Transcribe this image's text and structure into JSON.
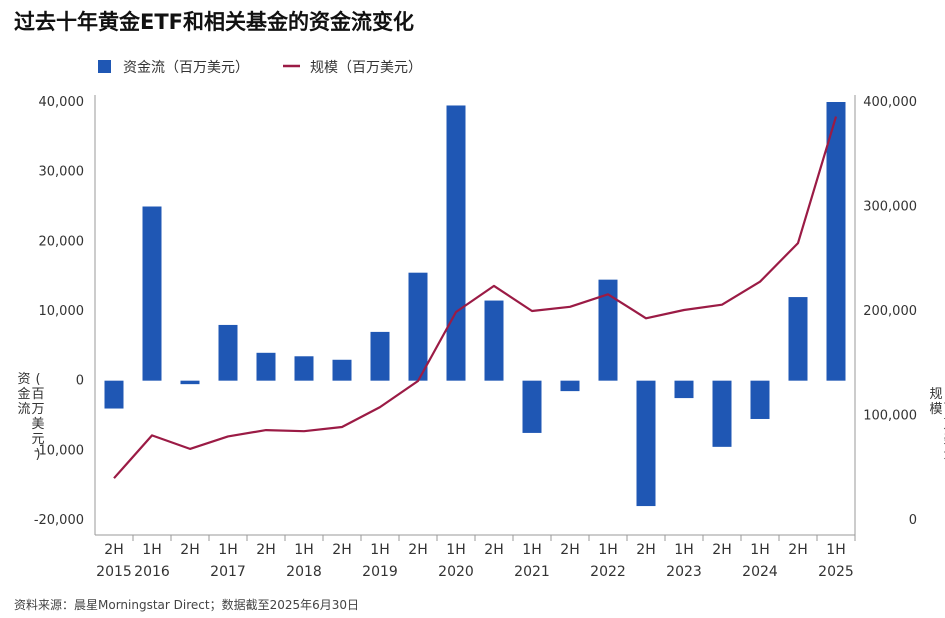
{
  "chart_data": {
    "type": "bar+line",
    "title": "过去十年黄金ETF和相关基金的资金流变化",
    "legend": {
      "placement": "top-left",
      "items": [
        {
          "label": "资金流（百万美元）",
          "kind": "bar"
        },
        {
          "label": "规模（百万美元）",
          "kind": "line"
        }
      ]
    },
    "left_axis": {
      "label": "资金流\n(百万美元)",
      "ylim": [
        -20000,
        40000
      ],
      "ticks": [
        -20000,
        -10000,
        0,
        10000,
        20000,
        30000,
        40000
      ],
      "tick_labels": [
        "-20,000",
        "-10,000",
        "0",
        "10,000",
        "20,000",
        "30,000",
        "40,000"
      ]
    },
    "right_axis": {
      "label": "规模\n(百万美元)",
      "ylim": [
        0,
        400000
      ],
      "ticks": [
        0,
        100000,
        200000,
        300000,
        400000
      ],
      "tick_labels": [
        "0",
        "100,000",
        "200,000",
        "300,000",
        "400,000"
      ]
    },
    "categories": [
      {
        "half": "2H",
        "year": "2015"
      },
      {
        "half": "1H",
        "year": "2016"
      },
      {
        "half": "2H",
        "year": ""
      },
      {
        "half": "1H",
        "year": "2017"
      },
      {
        "half": "2H",
        "year": ""
      },
      {
        "half": "1H",
        "year": "2018"
      },
      {
        "half": "2H",
        "year": ""
      },
      {
        "half": "1H",
        "year": "2019"
      },
      {
        "half": "2H",
        "year": ""
      },
      {
        "half": "1H",
        "year": "2020"
      },
      {
        "half": "2H",
        "year": ""
      },
      {
        "half": "1H",
        "year": "2021"
      },
      {
        "half": "2H",
        "year": ""
      },
      {
        "half": "1H",
        "year": "2022"
      },
      {
        "half": "2H",
        "year": ""
      },
      {
        "half": "1H",
        "year": "2023"
      },
      {
        "half": "2H",
        "year": ""
      },
      {
        "half": "1H",
        "year": "2024"
      },
      {
        "half": "2H",
        "year": ""
      },
      {
        "half": "1H",
        "year": "2025"
      }
    ],
    "series": [
      {
        "name": "资金流（百万美元）",
        "type": "bar",
        "axis": "left",
        "color": "#1f57b4",
        "values": [
          -4000,
          25000,
          -500,
          8000,
          4000,
          3500,
          3000,
          7000,
          15500,
          39500,
          11500,
          -7500,
          -1500,
          14500,
          -18000,
          -2500,
          -9500,
          -5500,
          12000,
          40000
        ]
      },
      {
        "name": "规模（百万美元）",
        "type": "line",
        "axis": "right",
        "color": "#9b1b45",
        "values": [
          40000,
          81000,
          68000,
          80000,
          86000,
          85000,
          89000,
          108000,
          133000,
          199000,
          224000,
          200000,
          204000,
          216000,
          193000,
          201000,
          206000,
          228000,
          265000,
          386000
        ]
      }
    ],
    "grid": false
  },
  "source": "资料来源：晨星Morningstar Direct；数据截至2025年6月30日"
}
